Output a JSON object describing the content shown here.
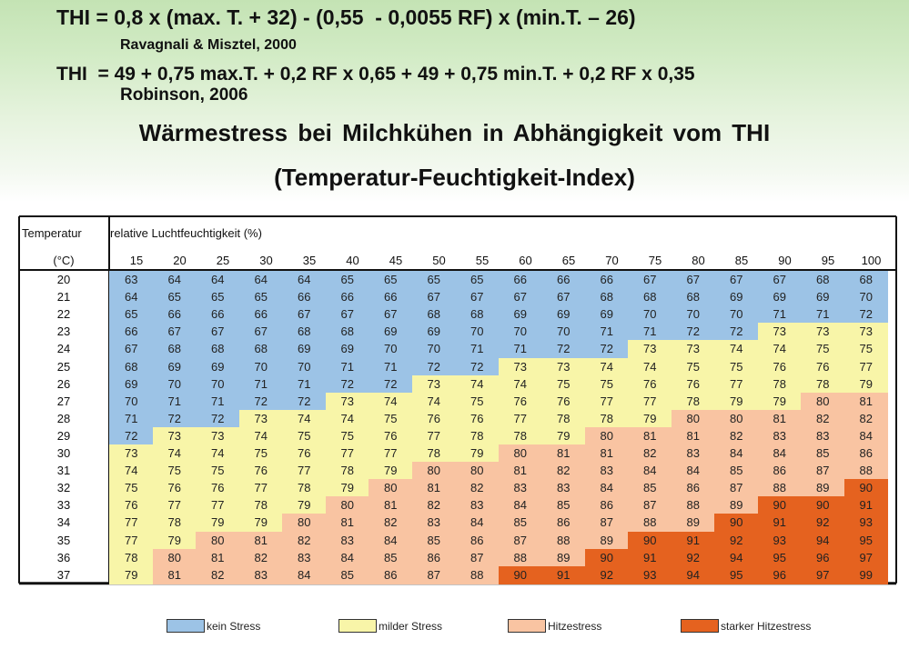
{
  "formula1": "THI = 0,8 x (max. T. + 32) - (0,55  - 0,0055 RF) x (min.T. – 26)",
  "author1": "Ravagnali & Misztel, 2000",
  "formula2": "THI  = 49 + 0,75 max.T. + 0,2 RF x 0,65 + 49 + 0,75 min.T. + 0,2 RF x 0,35",
  "author2": "Robinson, 2006",
  "heading1": "Wärmestress bei Milchkühen in Abhängigkeit vom THI",
  "heading2": "(Temperatur-Feuchtigkeit-Index)",
  "table": {
    "temp_header": "Temperatur",
    "temp_unit": "(°C)",
    "humidity_header": "relative Luchtfeuchtigkeit (%)",
    "humidity": [
      "15",
      "20",
      "25",
      "30",
      "35",
      "40",
      "45",
      "50",
      "55",
      "60",
      "65",
      "70",
      "75",
      "80",
      "85",
      "90",
      "95",
      "100"
    ],
    "temperatures": [
      "20",
      "21",
      "22",
      "23",
      "24",
      "25",
      "26",
      "27",
      "28",
      "29",
      "30",
      "31",
      "32",
      "33",
      "34",
      "35",
      "36",
      "37"
    ],
    "values": [
      [
        63,
        64,
        64,
        64,
        64,
        65,
        65,
        65,
        65,
        66,
        66,
        66,
        67,
        67,
        67,
        67,
        68,
        68
      ],
      [
        64,
        65,
        65,
        65,
        66,
        66,
        66,
        67,
        67,
        67,
        67,
        68,
        68,
        68,
        69,
        69,
        69,
        70
      ],
      [
        65,
        66,
        66,
        66,
        67,
        67,
        67,
        68,
        68,
        69,
        69,
        69,
        70,
        70,
        70,
        71,
        71,
        72
      ],
      [
        66,
        67,
        67,
        67,
        68,
        68,
        69,
        69,
        70,
        70,
        70,
        71,
        71,
        72,
        72,
        73,
        73,
        73
      ],
      [
        67,
        68,
        68,
        68,
        69,
        69,
        70,
        70,
        71,
        71,
        72,
        72,
        73,
        73,
        74,
        74,
        75,
        75
      ],
      [
        68,
        69,
        69,
        70,
        70,
        71,
        71,
        72,
        72,
        73,
        73,
        74,
        74,
        75,
        75,
        76,
        76,
        77
      ],
      [
        69,
        70,
        70,
        71,
        71,
        72,
        72,
        73,
        74,
        74,
        75,
        75,
        76,
        76,
        77,
        78,
        78,
        79
      ],
      [
        70,
        71,
        71,
        72,
        72,
        73,
        74,
        74,
        75,
        76,
        76,
        77,
        77,
        78,
        79,
        79,
        80,
        81
      ],
      [
        71,
        72,
        72,
        73,
        74,
        74,
        75,
        76,
        76,
        77,
        78,
        78,
        79,
        80,
        80,
        81,
        82,
        82
      ],
      [
        72,
        73,
        73,
        74,
        75,
        75,
        76,
        77,
        78,
        78,
        79,
        80,
        81,
        81,
        82,
        83,
        83,
        84
      ],
      [
        73,
        74,
        74,
        75,
        76,
        77,
        77,
        78,
        79,
        80,
        81,
        81,
        82,
        83,
        84,
        84,
        85,
        86
      ],
      [
        74,
        75,
        75,
        76,
        77,
        78,
        79,
        80,
        80,
        81,
        82,
        83,
        84,
        84,
        85,
        86,
        87,
        88
      ],
      [
        75,
        76,
        76,
        77,
        78,
        79,
        80,
        81,
        82,
        83,
        83,
        84,
        85,
        86,
        87,
        88,
        89,
        90
      ],
      [
        76,
        77,
        77,
        78,
        79,
        80,
        81,
        82,
        83,
        84,
        85,
        86,
        87,
        88,
        89,
        90,
        90,
        91
      ],
      [
        77,
        78,
        79,
        79,
        80,
        81,
        82,
        83,
        84,
        85,
        86,
        87,
        88,
        89,
        90,
        91,
        92,
        93
      ],
      [
        77,
        79,
        80,
        81,
        82,
        83,
        84,
        85,
        86,
        87,
        88,
        89,
        90,
        91,
        92,
        93,
        94,
        95
      ],
      [
        78,
        80,
        81,
        82,
        83,
        84,
        85,
        86,
        87,
        88,
        89,
        90,
        91,
        92,
        94,
        95,
        96,
        97
      ],
      [
        79,
        81,
        82,
        83,
        84,
        85,
        86,
        87,
        88,
        90,
        91,
        92,
        93,
        94,
        95,
        96,
        97,
        99
      ]
    ]
  },
  "colors": {
    "kein": "#9cc3e6",
    "milder": "#f8f5a8",
    "hitze": "#f9c4a2",
    "starker": "#e5621f"
  },
  "legend": [
    {
      "key": "kein",
      "label": "kein Stress"
    },
    {
      "key": "milder",
      "label": "milder Stress"
    },
    {
      "key": "hitze",
      "label": "Hitzestress"
    },
    {
      "key": "starker",
      "label": "starker Hitzestress"
    }
  ]
}
